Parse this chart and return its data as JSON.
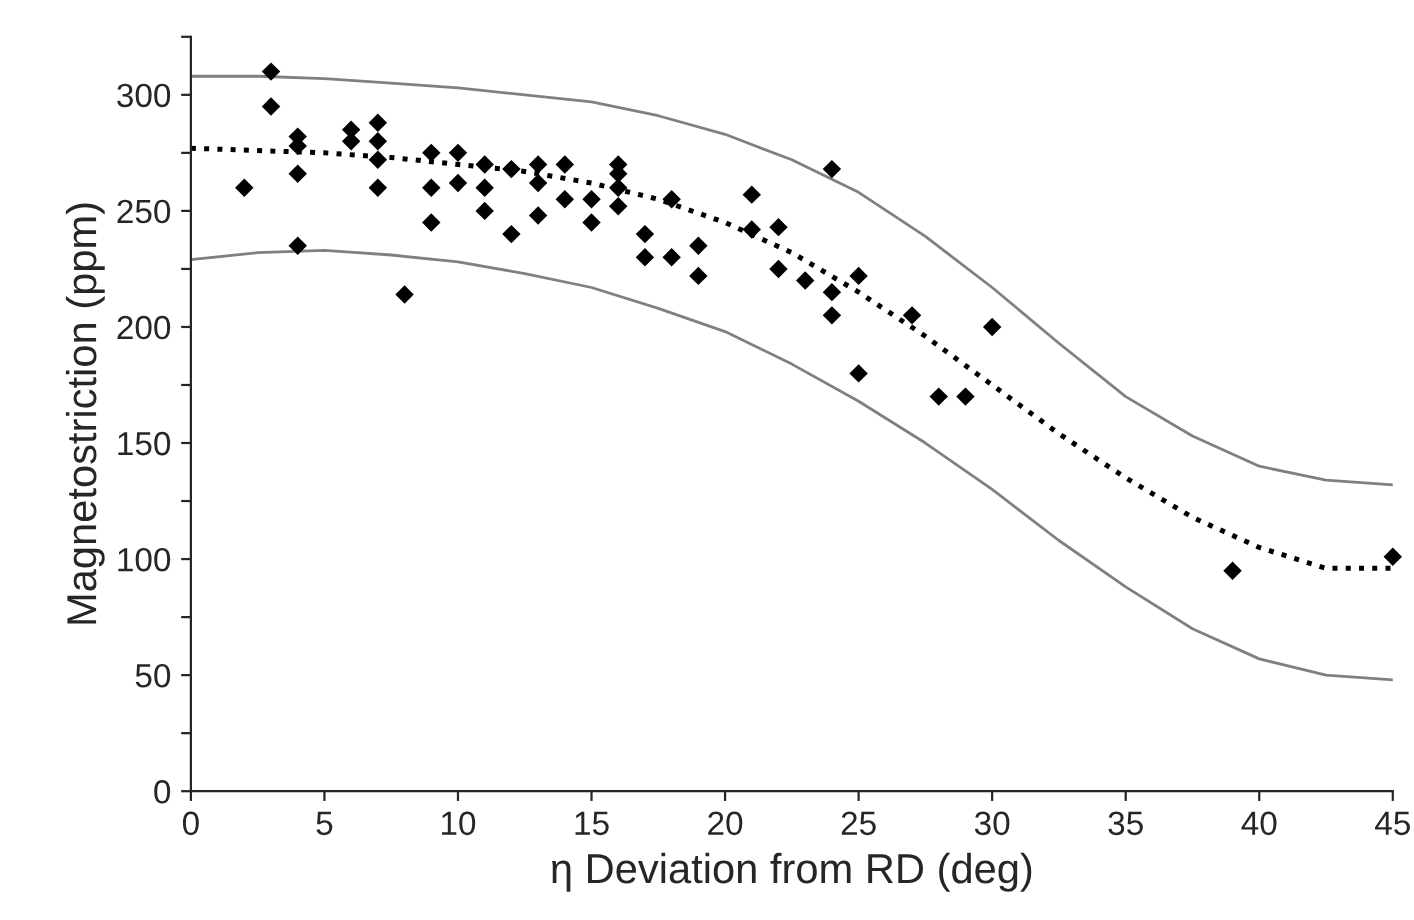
{
  "chart_data": {
    "type": "scatter",
    "xlabel": "η Deviation from RD (deg)",
    "ylabel": "Magnetostriction (ppm)",
    "xlim": [
      0,
      45
    ],
    "xticks": [
      0,
      5,
      10,
      15,
      20,
      25,
      30,
      35,
      40,
      45
    ],
    "ylim": [
      0,
      325
    ],
    "yticks": [
      0,
      {
        "value": 25,
        "label": null
      },
      50,
      {
        "value": 75,
        "label": null
      },
      100,
      {
        "value": 125,
        "label": null
      },
      150,
      {
        "value": 175,
        "label": null
      },
      200,
      {
        "value": 225,
        "label": null
      },
      250,
      {
        "value": 275,
        "label": null
      },
      300,
      {
        "value": 325,
        "label": null
      }
    ],
    "grid": false,
    "legend": false,
    "series": [
      {
        "color": "#000000",
        "marker": "diamond",
        "x": [
          2,
          3,
          3,
          4,
          4,
          4,
          4,
          6,
          6,
          7,
          7,
          7,
          7,
          8,
          9,
          9,
          9,
          10,
          10,
          11,
          11,
          11,
          12,
          12,
          13,
          13,
          13,
          14,
          14,
          15,
          15,
          16,
          16,
          16,
          16,
          17,
          17,
          18,
          18,
          19,
          19,
          21,
          21,
          22,
          22,
          23,
          24,
          24,
          24,
          25,
          25,
          27,
          28,
          29,
          30,
          39,
          45
        ],
        "values": [
          260,
          310,
          295,
          282,
          278,
          266,
          235,
          285,
          280,
          288,
          280,
          272,
          260,
          214,
          275,
          260,
          245,
          275,
          262,
          270,
          260,
          250,
          268,
          240,
          270,
          262,
          248,
          270,
          255,
          255,
          245,
          270,
          266,
          260,
          252,
          240,
          230,
          255,
          230,
          235,
          222,
          257,
          242,
          243,
          225,
          220,
          268,
          215,
          205,
          222,
          180,
          205,
          170,
          170,
          200,
          95,
          101
        ]
      },
      {
        "type": "line",
        "color": "#808080",
        "line_style": "solid",
        "marker": "none",
        "x": [
          0,
          2.5,
          5,
          7.5,
          10,
          12.5,
          15,
          17.5,
          20,
          22.5,
          25,
          27.5,
          30,
          32.5,
          35,
          37.5,
          40,
          42.5,
          45
        ],
        "values": [
          308,
          308,
          307,
          305,
          303,
          300,
          297,
          291,
          283,
          272,
          258,
          239,
          217,
          193,
          170,
          153,
          140,
          134,
          132
        ]
      },
      {
        "type": "line",
        "color": "#000000",
        "line_style": "dotted",
        "marker": "none",
        "x": [
          0,
          2.5,
          5,
          7.5,
          10,
          12.5,
          15,
          17.5,
          20,
          22.5,
          25,
          27.5,
          30,
          32.5,
          35,
          37.5,
          40,
          42.5,
          45
        ],
        "values": [
          277,
          276,
          275,
          273,
          270,
          267,
          262,
          255,
          245,
          232,
          215,
          196,
          175,
          154,
          135,
          118,
          105,
          96,
          96
        ]
      },
      {
        "type": "line",
        "color": "#808080",
        "line_style": "solid",
        "marker": "none",
        "x": [
          0,
          2.5,
          5,
          7.5,
          10,
          12.5,
          15,
          17.5,
          20,
          22.5,
          25,
          27.5,
          30,
          32.5,
          35,
          37.5,
          40,
          42.5,
          45
        ],
        "values": [
          229,
          232,
          233,
          231,
          228,
          223,
          217,
          208,
          198,
          184,
          168,
          150,
          130,
          108,
          88,
          70,
          57,
          50,
          48
        ]
      }
    ]
  }
}
